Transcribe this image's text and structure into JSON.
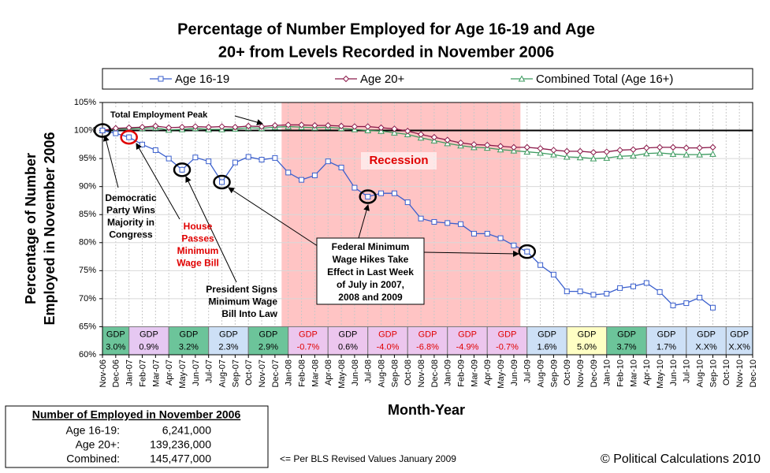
{
  "chart_data": {
    "type": "line",
    "title": [
      "Percentage of Number Employed for Age 16-19 and Age",
      "20+ from Levels Recorded in November 2006"
    ],
    "y_label": [
      "Percentage of Number",
      "Employed in November 2006"
    ],
    "x_label": "Month-Year",
    "categories": [
      "Nov-06",
      "Dec-06",
      "Jan-07",
      "Feb-07",
      "Mar-07",
      "Apr-07",
      "May-07",
      "Jun-07",
      "Jul-07",
      "Aug-07",
      "Sep-07",
      "Oct-07",
      "Nov-07",
      "Dec-07",
      "Jan-08",
      "Feb-08",
      "Mar-08",
      "Apr-08",
      "May-08",
      "Jun-08",
      "Jul-08",
      "Aug-08",
      "Sep-08",
      "Oct-08",
      "Nov-08",
      "Dec-08",
      "Jan-09",
      "Feb-09",
      "Mar-09",
      "Apr-09",
      "May-09",
      "Jun-09",
      "Jul-09",
      "Aug-09",
      "Sep-09",
      "Oct-09",
      "Nov-09",
      "Dec-09",
      "Jan-10",
      "Feb-10",
      "Mar-10",
      "Apr-10",
      "May-10",
      "Jun-10",
      "Jul-10",
      "Aug-10",
      "Sep-10",
      "Oct-10",
      "Nov-10",
      "Dec-10"
    ],
    "series": [
      {
        "name": "Age 16-19",
        "color": "#3a5fcd",
        "marker": "square",
        "values": [
          100,
          99.5,
          98.8,
          97.5,
          96.5,
          95.0,
          93.0,
          95.2,
          94.5,
          90.8,
          94.3,
          95.3,
          94.8,
          95.1,
          92.5,
          91.2,
          92.0,
          94.5,
          93.4,
          89.8,
          88.2,
          88.8,
          88.8,
          87.2,
          84.3,
          83.7,
          83.5,
          83.3,
          81.6,
          81.6,
          80.8,
          79.5,
          78.4,
          76.0,
          74.3,
          71.3,
          71.3,
          70.7,
          70.9,
          71.9,
          72.2,
          72.8,
          71.2,
          68.8,
          69.2,
          70.2,
          68.4,
          null,
          null,
          null
        ]
      },
      {
        "name": "Age 20+",
        "color": "#8b1a4a",
        "marker": "diamond",
        "values": [
          100,
          100.4,
          100.5,
          100.6,
          100.8,
          100.5,
          100.6,
          100.7,
          100.6,
          100.7,
          100.6,
          100.8,
          100.7,
          100.9,
          101.0,
          101.0,
          100.9,
          100.9,
          100.8,
          100.7,
          100.7,
          100.5,
          100.3,
          99.9,
          99.3,
          98.8,
          98.3,
          97.8,
          97.5,
          97.4,
          97.2,
          97.0,
          97.0,
          96.8,
          96.5,
          96.3,
          96.3,
          96.1,
          96.2,
          96.5,
          96.6,
          96.9,
          97.0,
          97.0,
          96.9,
          96.9,
          97.0,
          null,
          null,
          null
        ]
      },
      {
        "name": "Combined Total (Age 16+)",
        "color": "#3c9a5f",
        "marker": "triangle",
        "values": [
          100,
          100.3,
          100.3,
          100.4,
          100.5,
          100.1,
          100.2,
          100.4,
          100.2,
          100.2,
          100.3,
          100.5,
          100.4,
          100.6,
          100.7,
          100.6,
          100.5,
          100.6,
          100.4,
          100.2,
          100.0,
          99.9,
          99.6,
          99.3,
          98.7,
          98.2,
          97.7,
          97.3,
          97.0,
          96.9,
          96.6,
          96.4,
          96.2,
          96.0,
          95.7,
          95.3,
          95.2,
          95.0,
          95.1,
          95.4,
          95.5,
          95.9,
          96.0,
          95.8,
          95.7,
          95.7,
          95.8,
          null,
          null,
          null
        ]
      }
    ],
    "ylim": [
      60,
      105
    ],
    "yticks": [
      {
        "value": 60,
        "label": "60%"
      },
      {
        "value": 65,
        "label": "65%"
      },
      {
        "value": 70,
        "label": "70%"
      },
      {
        "value": 75,
        "label": "75%"
      },
      {
        "value": 80,
        "label": "80%"
      },
      {
        "value": 85,
        "label": "85%"
      },
      {
        "value": 90,
        "label": "90%"
      },
      {
        "value": 95,
        "label": "95%"
      },
      {
        "value": 100,
        "label": "100%"
      },
      {
        "value": 105,
        "label": "105%"
      }
    ],
    "grid": true,
    "reference_line": 100,
    "recession": {
      "label": "Recession",
      "start": "Dec-07",
      "end": "Jun-09",
      "color": "#ffc4c4"
    },
    "gdp": {
      "heading": "GDP",
      "values": [
        3.0,
        0.9,
        3.2,
        2.3,
        2.9,
        -0.7,
        0.6,
        -4.0,
        -6.8,
        -4.9,
        -0.7,
        1.6,
        5.0,
        3.7,
        1.7,
        null,
        null
      ],
      "value_labels": [
        "3.0%",
        "0.9%",
        "3.2%",
        "2.3%",
        "2.9%",
        "-0.7%",
        "0.6%",
        "-4.0%",
        "-6.8%",
        "-4.9%",
        "-0.7%",
        "1.6%",
        "5.0%",
        "3.7%",
        "1.7%",
        "X.X%",
        "X.X%"
      ],
      "colors": [
        "#6cc49a",
        "#e6c8f2",
        "#6cc49a",
        "#cde0f6",
        "#6cc49a",
        "#ecc6ee",
        "#ecc6ee",
        "#ecc6ee",
        "#ecc6ee",
        "#ecc6ee",
        "#ecc6ee",
        "#cde0f6",
        "#ffffc4",
        "#6cc49a",
        "#cde0f6",
        "#cde0f6",
        "#cde0f6"
      ]
    },
    "annotations": [
      {
        "lines": [
          "Total Employment Peak"
        ]
      },
      {
        "lines": [
          "Democratic",
          "Party Wins",
          "Majority in",
          "Congress"
        ]
      },
      {
        "lines": [
          "House",
          "Passes",
          "Minimum",
          "Wage Bill"
        ]
      },
      {
        "lines": [
          "President Signs",
          "Minimum Wage",
          "Bill Into Law"
        ]
      },
      {
        "lines": [
          "Federal Minimum",
          "Wage Hikes Take",
          "Effect in Last Week",
          "of July in 2007,",
          "2008 and 2009"
        ]
      }
    ]
  },
  "summary_table": {
    "title": "Number of Employed in November 2006",
    "rows": [
      {
        "label": "Age 16-19:",
        "value": {
          "value": 6241000,
          "label": "6,241,000"
        }
      },
      {
        "label": "Age 20+:",
        "value": {
          "value": 139236000,
          "label": "139,236,000"
        }
      },
      {
        "label": "Combined:",
        "value": {
          "value": 145477000,
          "label": "145,477,000"
        }
      }
    ]
  },
  "footnote": "<= Per BLS Revised Values January 2009",
  "credit": "© Political Calculations 2010"
}
